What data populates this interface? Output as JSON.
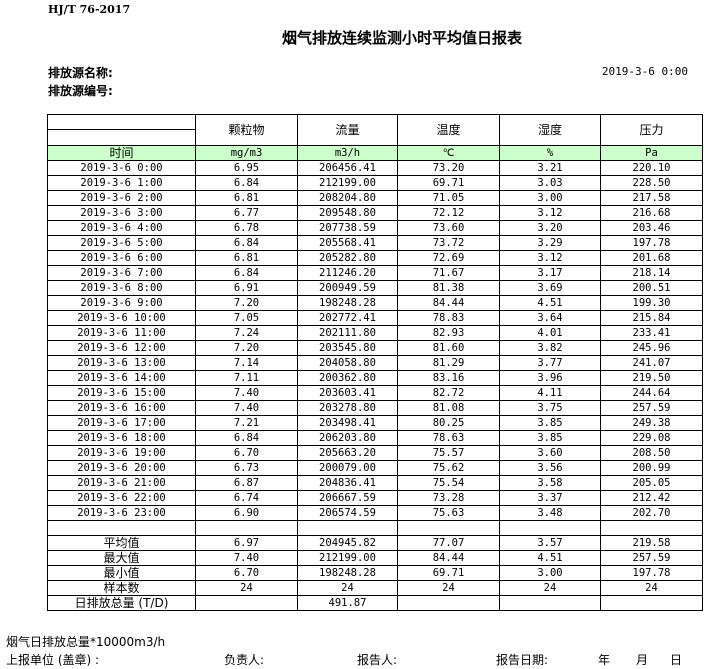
{
  "standard": "HJ/T  76-2017",
  "title": "烟气排放连续监测小时平均值日报表",
  "source_name_label": "排放源名称:",
  "source_no_label": "排放源编号:",
  "report_datetime": "2019-3-6  0:00",
  "table": {
    "columns": [
      "颗粒物",
      "流量",
      "温度",
      "湿度",
      "压力"
    ],
    "time_label": "时间",
    "units": [
      "mg/m3",
      "m3/h",
      "℃",
      "%",
      "Pa"
    ],
    "rows": [
      [
        "2019-3-6  0:00",
        "6.95",
        "206456.41",
        "73.20",
        "3.21",
        "220.10"
      ],
      [
        "2019-3-6  1:00",
        "6.84",
        "212199.00",
        "69.71",
        "3.03",
        "228.50"
      ],
      [
        "2019-3-6  2:00",
        "6.81",
        "208204.80",
        "71.05",
        "3.00",
        "217.58"
      ],
      [
        "2019-3-6  3:00",
        "6.77",
        "209548.80",
        "72.12",
        "3.12",
        "216.68"
      ],
      [
        "2019-3-6  4:00",
        "6.78",
        "207738.59",
        "73.60",
        "3.20",
        "203.46"
      ],
      [
        "2019-3-6  5:00",
        "6.84",
        "205568.41",
        "73.72",
        "3.29",
        "197.78"
      ],
      [
        "2019-3-6  6:00",
        "6.81",
        "205282.80",
        "72.69",
        "3.12",
        "201.68"
      ],
      [
        "2019-3-6  7:00",
        "6.84",
        "211246.20",
        "71.67",
        "3.17",
        "218.14"
      ],
      [
        "2019-3-6  8:00",
        "6.91",
        "200949.59",
        "81.38",
        "3.69",
        "200.51"
      ],
      [
        "2019-3-6  9:00",
        "7.20",
        "198248.28",
        "84.44",
        "4.51",
        "199.30"
      ],
      [
        "2019-3-6  10:00",
        "7.05",
        "202772.41",
        "78.83",
        "3.64",
        "215.84"
      ],
      [
        "2019-3-6  11:00",
        "7.24",
        "202111.80",
        "82.93",
        "4.01",
        "233.41"
      ],
      [
        "2019-3-6  12:00",
        "7.20",
        "203545.80",
        "81.60",
        "3.82",
        "245.96"
      ],
      [
        "2019-3-6  13:00",
        "7.14",
        "204058.80",
        "81.29",
        "3.77",
        "241.07"
      ],
      [
        "2019-3-6  14:00",
        "7.11",
        "200362.80",
        "83.16",
        "3.96",
        "219.50"
      ],
      [
        "2019-3-6  15:00",
        "7.40",
        "203603.41",
        "82.72",
        "4.11",
        "244.64"
      ],
      [
        "2019-3-6  16:00",
        "7.40",
        "203278.80",
        "81.08",
        "3.75",
        "257.59"
      ],
      [
        "2019-3-6  17:00",
        "7.21",
        "203498.41",
        "80.25",
        "3.85",
        "249.38"
      ],
      [
        "2019-3-6  18:00",
        "6.84",
        "206203.80",
        "78.63",
        "3.85",
        "229.08"
      ],
      [
        "2019-3-6  19:00",
        "6.70",
        "205663.20",
        "75.57",
        "3.60",
        "208.50"
      ],
      [
        "2019-3-6  20:00",
        "6.73",
        "200079.00",
        "75.62",
        "3.56",
        "200.99"
      ],
      [
        "2019-3-6  21:00",
        "6.87",
        "204836.41",
        "75.54",
        "3.58",
        "205.05"
      ],
      [
        "2019-3-6  22:00",
        "6.74",
        "206667.59",
        "73.28",
        "3.37",
        "212.42"
      ],
      [
        "2019-3-6  23:00",
        "6.90",
        "206574.59",
        "75.63",
        "3.48",
        "202.70"
      ]
    ],
    "summary": [
      [
        "平均值",
        "6.97",
        "204945.82",
        "77.07",
        "3.57",
        "219.58"
      ],
      [
        "最大值",
        "7.40",
        "212199.00",
        "84.44",
        "4.51",
        "257.59"
      ],
      [
        "最小值",
        "6.70",
        "198248.28",
        "69.71",
        "3.00",
        "197.78"
      ],
      [
        "样本数",
        "24",
        "24",
        "24",
        "24",
        "24"
      ],
      [
        "日排放总量 (T/D)",
        "",
        "491.87",
        "",
        "",
        ""
      ]
    ]
  },
  "footer": {
    "note": "烟气日排放总量*10000m3/h",
    "unit_label": "上报单位 (盖章) :",
    "manager_label": "负责人:",
    "reporter_label": "报告人:",
    "report_date_label": "报告日期:",
    "year": "年",
    "month": "月",
    "day": "日"
  }
}
